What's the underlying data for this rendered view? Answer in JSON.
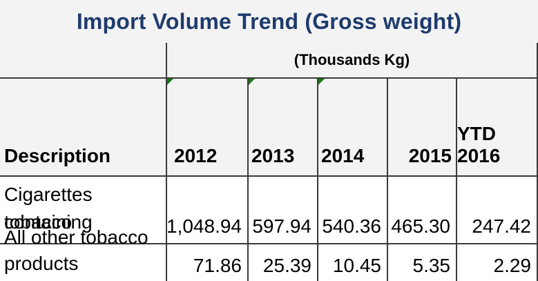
{
  "title": "Import Volume Trend (Gross weight)",
  "units": "(Thousands Kg)",
  "columns": {
    "description": "Description",
    "y2012": "2012",
    "y2013": "2013",
    "y2014": "2014",
    "y2015": "2015",
    "ytd2016": "YTD 2016"
  },
  "rows": [
    {
      "description_line1": " Cigarettes containing",
      "description_line2": "tobacco",
      "y2012": "1,048.94",
      "y2013": "597.94",
      "y2014": "540.36",
      "y2015": "465.30",
      "ytd2016": "247.42"
    },
    {
      "description_line1": "All other tobacco",
      "description_line2": "products",
      "y2012": "71.86",
      "y2013": "25.39",
      "y2014": "10.45",
      "y2015": "5.35",
      "ytd2016": "2.29"
    }
  ],
  "colors": {
    "title": "#1f3b6e",
    "header_bg": "#f3f3f3",
    "grid_line": "#3a3a3a",
    "indicator_triangle": "#1a7a1a"
  }
}
